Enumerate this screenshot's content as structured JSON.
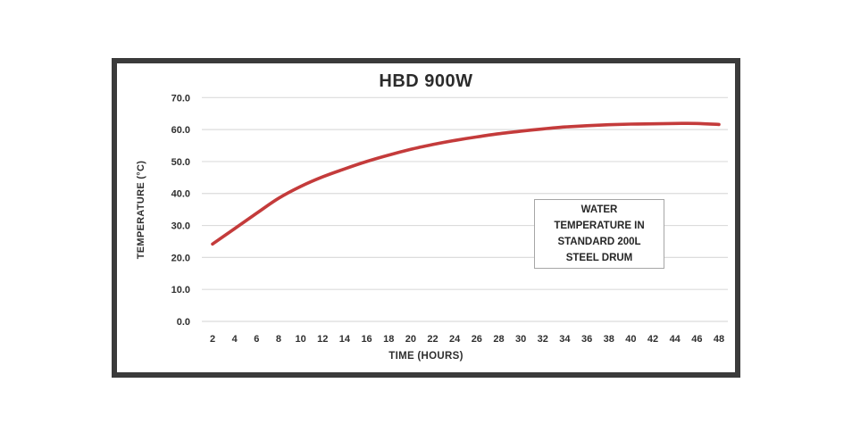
{
  "page": {
    "background_color": "#ffffff"
  },
  "frame": {
    "border_color": "#3b3b3b"
  },
  "chart_data": {
    "type": "line",
    "title": "HBD 900W",
    "xlabel": "TIME (HOURS)",
    "ylabel": "TEMPERATURE (°C)",
    "x": [
      2,
      4,
      6,
      8,
      10,
      12,
      14,
      16,
      18,
      20,
      22,
      24,
      26,
      28,
      30,
      32,
      34,
      36,
      38,
      40,
      42,
      44,
      46,
      48
    ],
    "xtick_labels": [
      "2",
      "4",
      "6",
      "8",
      "10",
      "12",
      "14",
      "16",
      "18",
      "20",
      "22",
      "24",
      "26",
      "28",
      "30",
      "32",
      "34",
      "36",
      "38",
      "40",
      "42",
      "44",
      "46",
      "48"
    ],
    "series": [
      {
        "name": "Water temperature in standard 200L steel drum",
        "color": "#c43b3b",
        "values": [
          24.2,
          29.0,
          33.8,
          38.5,
          42.2,
          45.2,
          47.7,
          50.0,
          52.0,
          53.8,
          55.3,
          56.6,
          57.7,
          58.7,
          59.5,
          60.2,
          60.8,
          61.2,
          61.5,
          61.7,
          61.8,
          61.9,
          61.9,
          61.6
        ]
      }
    ],
    "ylim": [
      0,
      70
    ],
    "yticks": [
      0,
      10,
      20,
      30,
      40,
      50,
      60,
      70
    ],
    "ytick_labels": [
      "0.0",
      "10.0",
      "20.0",
      "30.0",
      "40.0",
      "50.0",
      "60.0",
      "70.0"
    ],
    "grid": "horizontal",
    "gridline_color": "#dcdcdc",
    "legend": "none",
    "annotation": {
      "lines": [
        "WATER",
        "TEMPERATURE IN",
        "STANDARD 200L",
        "STEEL DRUM"
      ],
      "border_color": "#a6a6a6"
    }
  }
}
